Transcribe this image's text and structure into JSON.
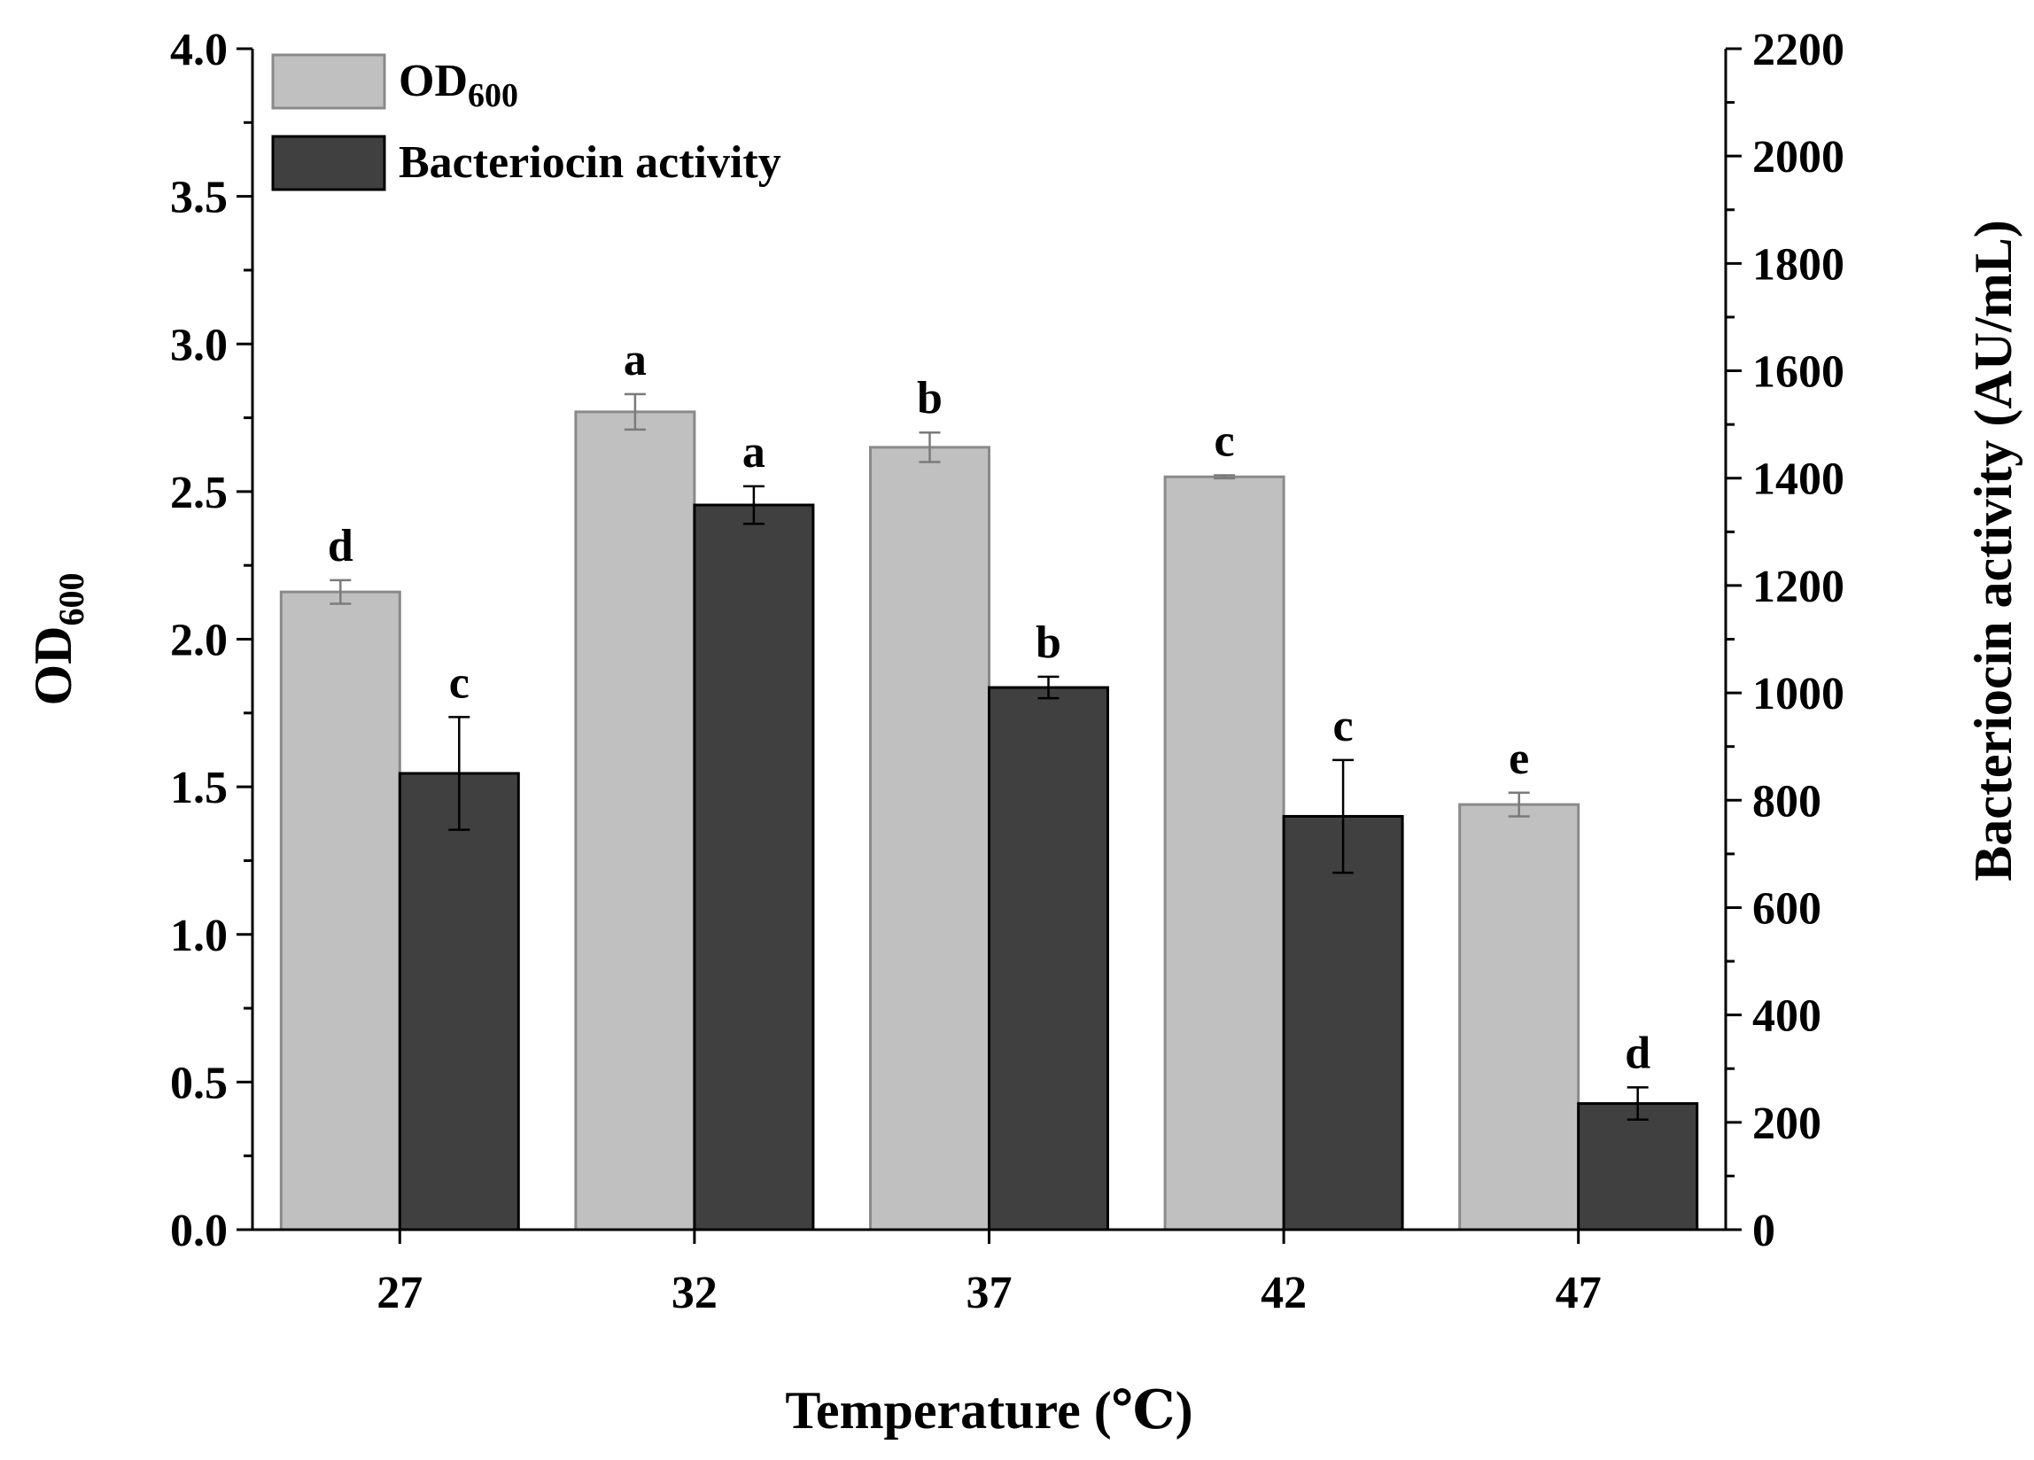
{
  "chart_data": {
    "type": "bar",
    "xlabel": "Temperature",
    "xunit": "(℃)",
    "categories": [
      "27",
      "32",
      "37",
      "42",
      "47"
    ],
    "y_left": {
      "label_main": "OD",
      "label_sub": "600",
      "ylim": [
        0,
        4.0
      ],
      "ticks": [
        "0.0",
        "0.5",
        "1.0",
        "1.5",
        "2.0",
        "2.5",
        "3.0",
        "3.5",
        "4.0"
      ]
    },
    "y_right": {
      "label": "Bacteriocin activity (AU/mL)",
      "ylim": [
        0,
        2200
      ],
      "ticks": [
        "0",
        "200",
        "400",
        "600",
        "800",
        "1000",
        "1200",
        "1400",
        "1600",
        "1800",
        "2000",
        "2200"
      ]
    },
    "series": [
      {
        "name": "OD600",
        "legend_main": "OD",
        "legend_sub": "600",
        "axis": "left",
        "color": "#c0c0c0",
        "edge": "#8a8a8a",
        "values": [
          2.16,
          2.77,
          2.65,
          2.55,
          1.44
        ],
        "errors": [
          0.04,
          0.06,
          0.05,
          0.005,
          0.04
        ],
        "labels": [
          "d",
          "a",
          "b",
          "c",
          "e"
        ]
      },
      {
        "name": "Bacteriocin activity",
        "legend_main": "Bacteriocin activity",
        "axis": "right",
        "color": "#404040",
        "edge": "#000000",
        "values": [
          850,
          1350,
          1010,
          770,
          235
        ],
        "errors": [
          105,
          35,
          20,
          105,
          30
        ],
        "labels": [
          "c",
          "a",
          "b",
          "c",
          "d"
        ]
      }
    ]
  }
}
